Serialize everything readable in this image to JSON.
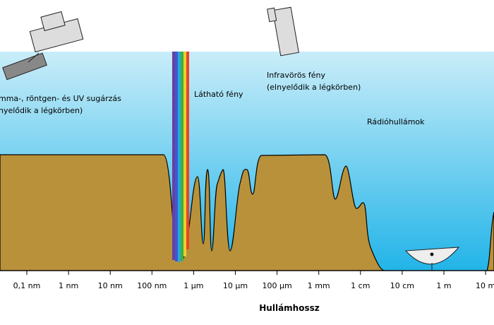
{
  "labels": {
    "gamma": "mma-, röntgen- és UV sugárzás",
    "gamma_note": "nyelődik a légkörben)",
    "visible": "Látható fény",
    "infrared": "Infravörös fény",
    "infrared_note": "(elnyelődik a légkörben)",
    "radio": "Rádióhullámok"
  },
  "axis": {
    "title": "Hullámhossz",
    "ticks": [
      "0,1 nm",
      "1 nm",
      "10 nm",
      "100 nm",
      "1 µm",
      "10 µm",
      "100 µm",
      "1 mm",
      "1 cm",
      "10 cm",
      "1 m",
      "10 m"
    ]
  }
}
